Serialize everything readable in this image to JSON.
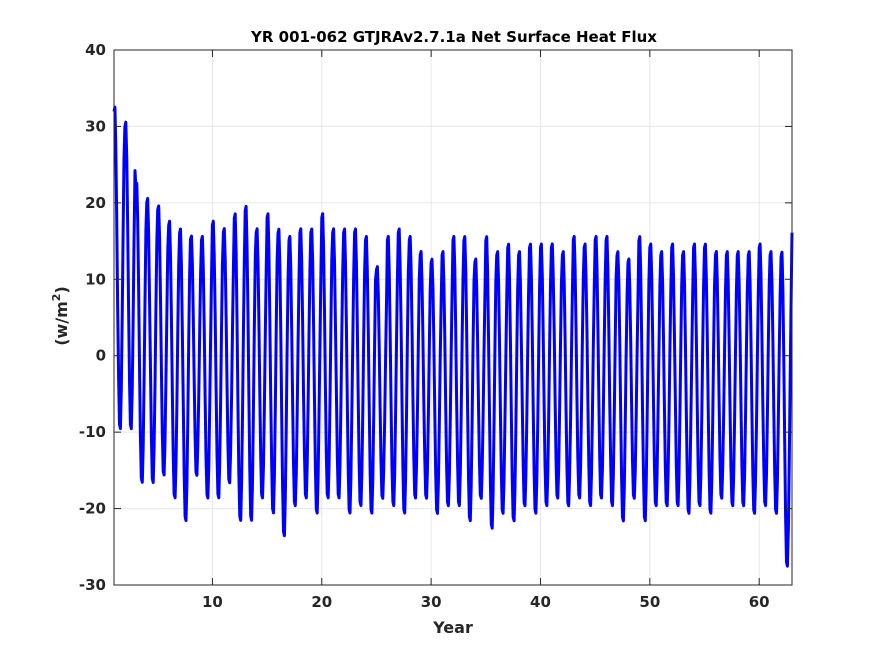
{
  "chart_data": {
    "type": "line",
    "title": "YR 001-062 GTJRAv2.7.1a Net Surface Heat Flux",
    "xlabel": "Year",
    "ylabel_main": "(w/m",
    "ylabel_sup": "2",
    "ylabel_end": ")",
    "xlim": [
      1,
      63
    ],
    "ylim": [
      -30,
      40
    ],
    "xticks": [
      10,
      20,
      30,
      40,
      50,
      60
    ],
    "yticks": [
      -30,
      -20,
      -10,
      0,
      10,
      20,
      30,
      40
    ],
    "grid": true,
    "legend": "none",
    "series": [
      {
        "color": "#0000ff",
        "line_width": 3,
        "samples_per_year": 12,
        "peak_month_phase": 0.05,
        "year_start": 1,
        "annual_max": [
          33,
          31,
          23,
          21,
          20,
          18,
          17,
          16,
          16,
          18,
          17,
          19,
          20,
          17,
          19,
          17,
          16,
          17,
          17,
          19,
          17,
          17,
          17,
          16,
          12,
          16,
          17,
          16,
          14,
          13,
          14,
          16,
          16,
          13,
          16,
          14,
          15,
          14,
          15,
          15,
          15,
          14,
          16,
          15,
          16,
          16,
          14,
          13,
          16,
          15,
          14,
          15,
          14,
          15,
          15,
          14,
          14,
          14,
          14,
          15,
          14,
          14,
          17
        ],
        "annual_min": [
          -10,
          -10,
          -17,
          -17,
          -16,
          -19,
          -22,
          -16,
          -19,
          -19,
          -17,
          -22,
          -22,
          -19,
          -21,
          -24,
          -20,
          -19,
          -21,
          -19,
          -19,
          -21,
          -20,
          -21,
          -19,
          -20,
          -21,
          -19,
          -19,
          -21,
          -20,
          -20,
          -22,
          -19,
          -23,
          -21,
          -22,
          -20,
          -21,
          -20,
          -19,
          -20,
          -19,
          -20,
          -19,
          -20,
          -22,
          -19,
          -22,
          -20,
          -20,
          -20,
          -21,
          -20,
          -21,
          -19,
          -20,
          -20,
          -21,
          -20,
          -21,
          -28,
          -20
        ]
      }
    ]
  }
}
